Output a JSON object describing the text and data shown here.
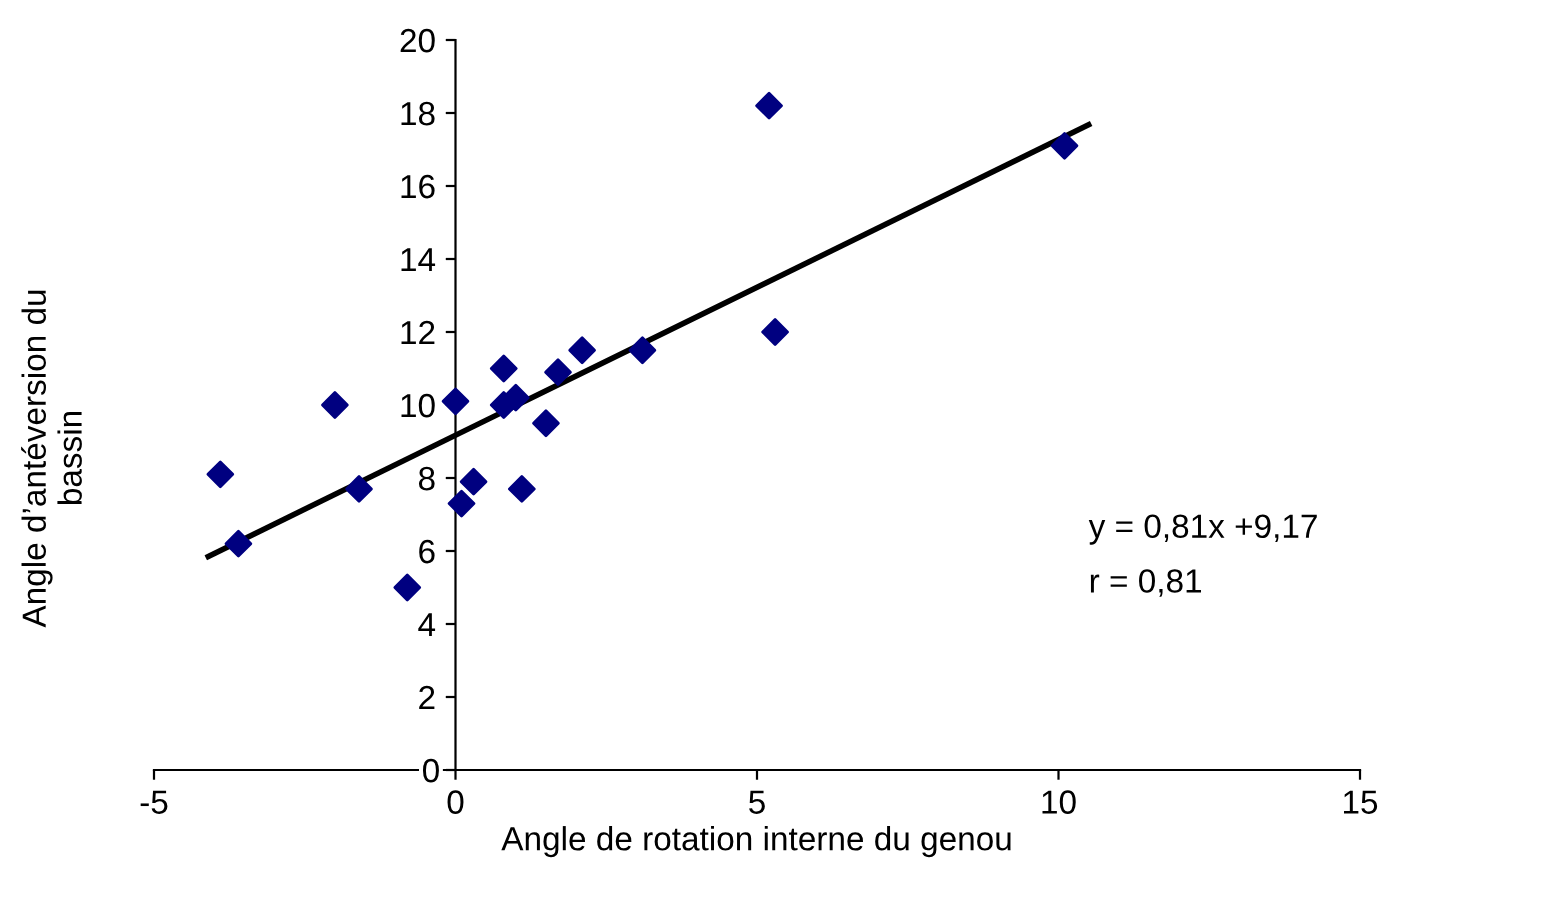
{
  "chart_data": {
    "type": "scatter",
    "xlabel": "Angle de rotation interne du genou",
    "ylabel": "Angle d’antéversion du\nbassin",
    "xlim": [
      -5,
      15
    ],
    "xticks": [
      -5,
      0,
      5,
      10,
      15
    ],
    "ylim": [
      0,
      20
    ],
    "yticks": [
      0,
      2,
      4,
      6,
      8,
      10,
      12,
      14,
      16,
      18,
      20
    ],
    "grid": false,
    "marker": "diamond",
    "annotations": [
      "y = 0,81x +9,17",
      "r = 0,81"
    ],
    "series": [
      {
        "color": "#000080",
        "x": [
          -3.9,
          -3.6,
          -2,
          -1.6,
          -0.8,
          0,
          0.1,
          0.3,
          0.8,
          0.8,
          1,
          1.1,
          1.5,
          1.7,
          2.1,
          3.1,
          5.2,
          5.3,
          10.1
        ],
        "values": [
          8.1,
          6.2,
          10,
          7.7,
          5,
          10.1,
          7.3,
          7.9,
          11,
          10,
          10.2,
          7.7,
          9.5,
          10.9,
          11.5,
          11.5,
          18.2,
          12,
          17.1
        ]
      },
      {
        "type": "line",
        "color": "#000000",
        "marker": "none",
        "x": [
          -4.1,
          10.5
        ],
        "values": [
          5.85,
          17.68
        ]
      }
    ]
  }
}
